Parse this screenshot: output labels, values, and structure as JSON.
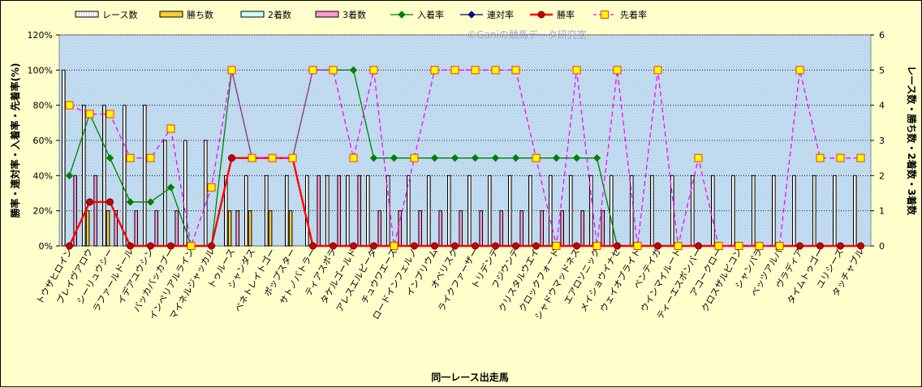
{
  "chart_data": {
    "type": "bar",
    "watermark": "©Ganiの競馬データ研究室",
    "xlabel": "同一レース出走馬",
    "ylabel_left": "勝率・連対率・入着率・先着率(%)",
    "ylabel_right": "レース数・勝ち数・2着数・3着数",
    "ylim_left": [
      0,
      120
    ],
    "ylim_right": [
      0,
      6
    ],
    "yticks_left": [
      "0%",
      "20%",
      "40%",
      "60%",
      "80%",
      "100%",
      "120%"
    ],
    "yticks_right": [
      "0",
      "1",
      "2",
      "3",
      "4",
      "5",
      "6"
    ],
    "grid": true,
    "legend_position": "top",
    "categories": [
      "トウザヒロイン",
      "ブレイヴアロウ",
      "シーリュウシー",
      "ラファールドール",
      "イデアユウシン",
      "バッカバッカブー",
      "インペリアルライン",
      "マイネルジャッカル",
      "トゥルース",
      "シャンダス",
      "ベネトレイトゴー",
      "ポップスター",
      "サトノバトラー",
      "ティアスポラ",
      "タケルゴールド",
      "アレスエルピーダ",
      "チュウワエース",
      "ロードインフェルノ",
      "インプリウム",
      "オベリスク",
      "ライクファーザー",
      "トリデンテ",
      "フジウンテ",
      "クリスタルウエイ",
      "クロックフォード",
      "シャドウマッドネス",
      "エアロソニック",
      "メイショウイナセ",
      "ウェイオブライト",
      "ベンテイガ",
      "ウインマイルート",
      "ティーエスボンバー",
      "アコークロー",
      "クロスザルビコン",
      "シャンパラ",
      "ベッツアルバ",
      "ヴラディア",
      "タイムトゥゴー",
      "ユリシーズ",
      "タッチャブル"
    ],
    "series": [
      {
        "name": "レース数",
        "kind": "bar",
        "axis": "right",
        "color": "#ffffff",
        "values": [
          5,
          4,
          4,
          4,
          4,
          3,
          3,
          3,
          2,
          2,
          2,
          2,
          2,
          2,
          2,
          2,
          2,
          2,
          2,
          2,
          2,
          2,
          2,
          2,
          2,
          2,
          2,
          2,
          2,
          2,
          2,
          2,
          2,
          2,
          2,
          2,
          2,
          2,
          2,
          2
        ]
      },
      {
        "name": "勝ち数",
        "kind": "bar",
        "axis": "right",
        "color": "#ffcc33",
        "values": [
          0,
          1,
          1,
          0,
          0,
          0,
          0,
          0,
          1,
          1,
          1,
          1,
          0,
          0,
          0,
          0,
          0,
          0,
          0,
          0,
          0,
          0,
          0,
          0,
          0,
          0,
          0,
          0,
          0,
          0,
          0,
          0,
          0,
          0,
          0,
          0,
          0,
          0,
          0,
          0
        ]
      },
      {
        "name": "2着数",
        "kind": "bar",
        "axis": "right",
        "color": "#ccffff",
        "values": [
          0,
          0,
          0,
          0,
          0,
          0,
          0,
          0,
          0,
          0,
          0,
          0,
          0,
          0,
          0,
          0,
          0,
          0,
          0,
          0,
          0,
          0,
          0,
          0,
          0,
          0,
          0,
          0,
          0,
          0,
          0,
          0,
          0,
          0,
          0,
          0,
          0,
          0,
          0,
          0
        ]
      },
      {
        "name": "3着数",
        "kind": "bar",
        "axis": "right",
        "color": "#ff99cc",
        "values": [
          2,
          2,
          1,
          1,
          1,
          1,
          0,
          0,
          1,
          0,
          0,
          0,
          2,
          2,
          2,
          1,
          1,
          1,
          1,
          1,
          1,
          1,
          1,
          1,
          1,
          1,
          1,
          0,
          0,
          0,
          0,
          0,
          0,
          0,
          0,
          0,
          0,
          0,
          0,
          0
        ]
      },
      {
        "name": "入着率",
        "kind": "line",
        "axis": "left",
        "color": "#008000",
        "marker": "diamond",
        "values": [
          40,
          75,
          50,
          25,
          25,
          33.3,
          0,
          0,
          100,
          50,
          50,
          50,
          100,
          100,
          100,
          50,
          50,
          50,
          50,
          50,
          50,
          50,
          50,
          50,
          50,
          50,
          50,
          0,
          0,
          0,
          0,
          0,
          0,
          0,
          0,
          0,
          0,
          0,
          0,
          0
        ]
      },
      {
        "name": "連対率",
        "kind": "line",
        "axis": "left",
        "color": "#000080",
        "marker": "diamond",
        "values": [
          0,
          25,
          25,
          0,
          0,
          0,
          0,
          0,
          50,
          50,
          50,
          50,
          0,
          0,
          0,
          0,
          0,
          0,
          0,
          0,
          0,
          0,
          0,
          0,
          0,
          0,
          0,
          0,
          0,
          0,
          0,
          0,
          0,
          0,
          0,
          0,
          0,
          0,
          0,
          0
        ]
      },
      {
        "name": "勝率",
        "kind": "line",
        "axis": "left",
        "color": "#ff0000",
        "marker": "circle",
        "values": [
          0,
          25,
          25,
          0,
          0,
          0,
          0,
          0,
          50,
          50,
          50,
          50,
          0,
          0,
          0,
          0,
          0,
          0,
          0,
          0,
          0,
          0,
          0,
          0,
          0,
          0,
          0,
          0,
          0,
          0,
          0,
          0,
          0,
          0,
          0,
          0,
          0,
          0,
          0,
          0
        ]
      },
      {
        "name": "先着率",
        "kind": "line",
        "axis": "left",
        "color": "#ff00ff",
        "marker": "square",
        "dashed": true,
        "values": [
          80,
          75,
          75,
          50,
          50,
          66.7,
          0,
          33.3,
          100,
          50,
          50,
          50,
          100,
          100,
          50,
          100,
          0,
          50,
          100,
          100,
          100,
          100,
          100,
          50,
          0,
          100,
          0,
          100,
          0,
          100,
          0,
          50,
          0,
          0,
          0,
          0,
          100,
          50,
          50,
          50
        ]
      }
    ]
  }
}
